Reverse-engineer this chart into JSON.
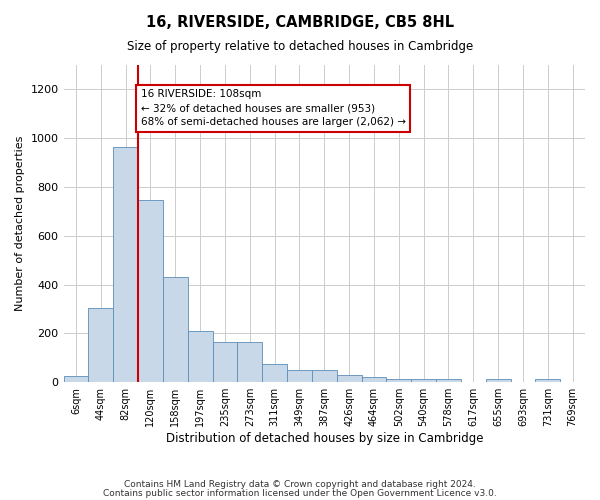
{
  "title": "16, RIVERSIDE, CAMBRIDGE, CB5 8HL",
  "subtitle": "Size of property relative to detached houses in Cambridge",
  "xlabel": "Distribution of detached houses by size in Cambridge",
  "ylabel": "Number of detached properties",
  "bin_labels": [
    "6sqm",
    "44sqm",
    "82sqm",
    "120sqm",
    "158sqm",
    "197sqm",
    "235sqm",
    "273sqm",
    "311sqm",
    "349sqm",
    "387sqm",
    "426sqm",
    "464sqm",
    "502sqm",
    "540sqm",
    "578sqm",
    "617sqm",
    "655sqm",
    "693sqm",
    "731sqm",
    "769sqm"
  ],
  "bar_heights": [
    25,
    305,
    965,
    745,
    430,
    210,
    165,
    165,
    75,
    48,
    48,
    30,
    20,
    15,
    15,
    15,
    0,
    15,
    0,
    12,
    0
  ],
  "bar_color": "#c8d8e8",
  "bar_edge_color": "#5b8db8",
  "red_line_x": 2.5,
  "annotation_text": "16 RIVERSIDE: 108sqm\n← 32% of detached houses are smaller (953)\n68% of semi-detached houses are larger (2,062) →",
  "annotation_box_color": "#ffffff",
  "annotation_box_edge": "#cc0000",
  "ylim": [
    0,
    1300
  ],
  "yticks": [
    0,
    200,
    400,
    600,
    800,
    1000,
    1200
  ],
  "footer_line1": "Contains HM Land Registry data © Crown copyright and database right 2024.",
  "footer_line2": "Contains public sector information licensed under the Open Government Licence v3.0.",
  "background_color": "#ffffff",
  "grid_color": "#cccccc"
}
